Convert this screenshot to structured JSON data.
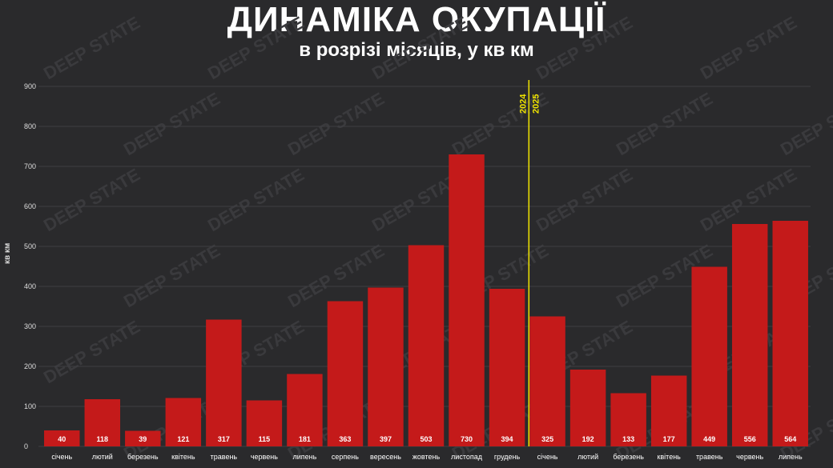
{
  "header": {
    "title": "ДИНАМІКА ОКУПАЦІЇ",
    "subtitle": "в розрізі місяців, у кв км"
  },
  "watermark": "DEEP STATE",
  "colors": {
    "background": "#2a2a2c",
    "bar": "#c41a1a",
    "divider": "#f2e600",
    "grid": "#3f3f42",
    "text": "#ffffff"
  },
  "chart_data": {
    "type": "bar",
    "title": "ДИНАМІКА ОКУПАЦІЇ",
    "subtitle": "в розрізі місяців, у кв км",
    "ylabel": "кв км",
    "xlabel": "",
    "ylim": [
      0,
      900
    ],
    "yticks": [
      0,
      100,
      200,
      300,
      400,
      500,
      600,
      700,
      800,
      900
    ],
    "grid": true,
    "categories": [
      "січень",
      "лютий",
      "березень",
      "квітень",
      "травень",
      "червень",
      "липень",
      "серпень",
      "вересень",
      "жовтень",
      "листопад",
      "грудень",
      "січень",
      "лютий",
      "березень",
      "квітень",
      "травень",
      "червень",
      "липень"
    ],
    "values": [
      40,
      118,
      39,
      121,
      317,
      115,
      181,
      363,
      397,
      503,
      730,
      394,
      325,
      192,
      133,
      177,
      449,
      556,
      564
    ],
    "year_divider": {
      "after_index": 11,
      "left_label": "2024",
      "right_label": "2025"
    }
  }
}
